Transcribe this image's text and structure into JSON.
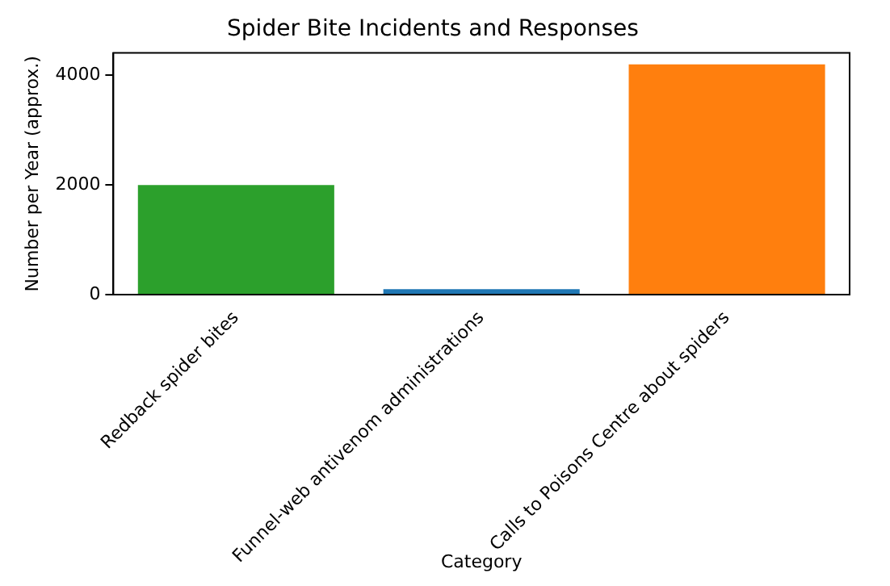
{
  "chart_data": {
    "type": "bar",
    "title": "Spider Bite Incidents and Responses",
    "xlabel": "Category",
    "ylabel": "Number per Year (approx.)",
    "categories": [
      "Redback spider bites",
      "Funnel-web antivenom administrations",
      "Calls to Poisons Centre about spiders"
    ],
    "values": [
      2000,
      100,
      4200
    ],
    "colors": [
      "#2ca02c",
      "#1f77b4",
      "#ff7f0e"
    ],
    "ylim": [
      0,
      4410
    ],
    "yticks": [
      0,
      2000,
      4000
    ],
    "grid": false,
    "legend": false
  }
}
